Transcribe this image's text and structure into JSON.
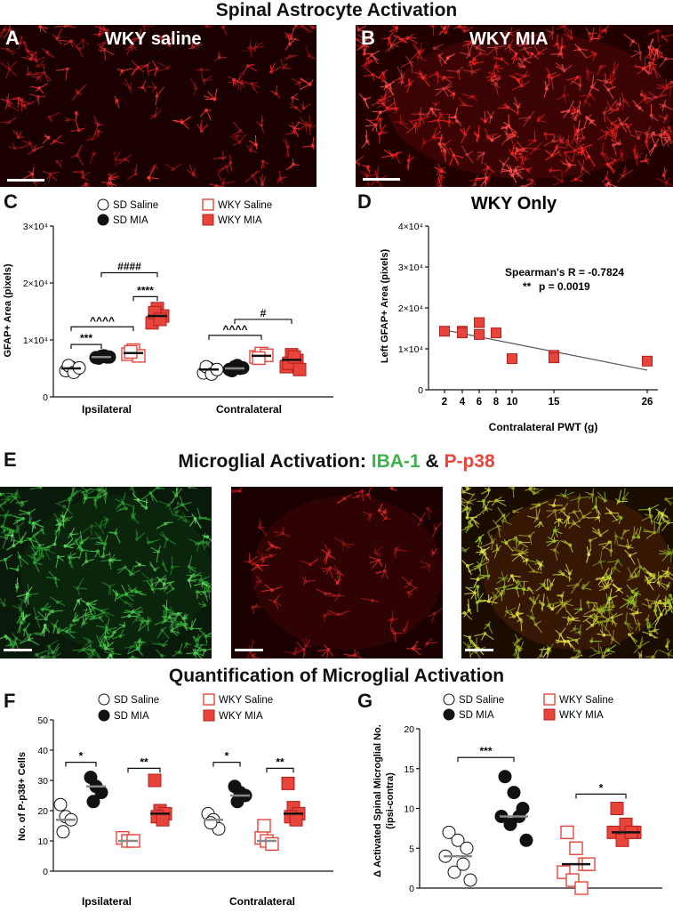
{
  "figure_title": "Spinal Astrocyte Activation",
  "panelA": {
    "letter": "A",
    "title": "WKY saline"
  },
  "panelB": {
    "letter": "B",
    "title": "WKY MIA"
  },
  "panelC_letter": "C",
  "panelD_letter": "D",
  "panelE_letter": "E",
  "panelF_letter": "F",
  "panelG_letter": "G",
  "microglia_title": {
    "prefix": "Microglial Activation: ",
    "iba": "IBA-1",
    "amp": " & ",
    "pp38": "P-p38"
  },
  "quant_title": "Quantification of Microglial Activation",
  "legend": {
    "sd_saline": "SD Saline",
    "sd_mia": "SD MIA",
    "wky_saline": "WKY Saline",
    "wky_mia": "WKY MIA"
  },
  "colors": {
    "red": "#e8443a",
    "green": "#3cb24a",
    "gray": "#888888",
    "black": "#111111"
  },
  "chart_data": [
    {
      "id": "C",
      "type": "scatter",
      "ylabel": "GFAP+ Area (pixels)",
      "yticks": [
        "0",
        "1×10⁴",
        "2×10⁴",
        "3×10⁴"
      ],
      "ylim": [
        0,
        30000
      ],
      "categories": [
        "Ipsilateral",
        "Contralateral"
      ],
      "series": [
        {
          "name": "SD Saline",
          "ipsi": [
            4600,
            5200,
            4800,
            5500,
            4300,
            5100
          ],
          "contra": [
            4200,
            5000,
            4600,
            5300,
            4000,
            4800
          ],
          "mean": [
            5000,
            4800
          ]
        },
        {
          "name": "SD MIA",
          "ipsi": [
            6900,
            7100,
            7000,
            6800,
            7200,
            7000
          ],
          "contra": [
            4800,
            5300,
            5000,
            4600,
            5500,
            5100
          ],
          "mean": [
            7000,
            5000
          ]
        },
        {
          "name": "WKY Saline",
          "ipsi": [
            7500,
            8200,
            7200,
            7900
          ],
          "contra": [
            7000,
            7600,
            7300,
            6800
          ],
          "mean": [
            7700,
            7200
          ]
        },
        {
          "name": "WKY MIA",
          "ipsi": [
            13000,
            15500,
            14200,
            14800,
            13600
          ],
          "contra": [
            5300,
            7400,
            6400,
            5900,
            7000,
            4800
          ],
          "mean": [
            14200,
            6500
          ]
        }
      ],
      "brackets": [
        {
          "label": "***"
        },
        {
          "label": "^^^^"
        },
        {
          "label": "####"
        },
        {
          "label": "****"
        },
        {
          "label": "^^^^"
        },
        {
          "label": "#"
        }
      ]
    },
    {
      "id": "D",
      "type": "scatter",
      "title": "WKY Only",
      "xlabel": "Contralateral PWT (g)",
      "ylabel": "Left GFAP+ Area (pixels)",
      "xticks": [
        "2",
        "4",
        "6",
        "8",
        "10",
        "15",
        "26"
      ],
      "yticks": [
        "0",
        "1×10⁴",
        "2×10⁴",
        "3×10⁴",
        "4×10⁴"
      ],
      "ylim": [
        0,
        40000
      ],
      "points": [
        {
          "x": "2",
          "y": 14300
        },
        {
          "x": "4",
          "y": 14300
        },
        {
          "x": "4",
          "y": 13900
        },
        {
          "x": "6",
          "y": 16400
        },
        {
          "x": "6",
          "y": 13500
        },
        {
          "x": "8",
          "y": 13900
        },
        {
          "x": "10",
          "y": 7600
        },
        {
          "x": "15",
          "y": 8400
        },
        {
          "x": "15",
          "y": 7800
        },
        {
          "x": "26",
          "y": 7000
        }
      ],
      "fit": {
        "x_start": "2",
        "x_end": "26",
        "y_start": 14600,
        "y_end": 4800
      },
      "stat1": "Spearman's R = -0.7824",
      "stat2_stars": "**",
      "stat2": "p = 0.0019"
    },
    {
      "id": "F",
      "type": "scatter",
      "ylabel": "No. of P-p38+ Cells",
      "yticks": [
        "0",
        "10",
        "20",
        "30",
        "40",
        "50"
      ],
      "ylim": [
        0,
        50
      ],
      "categories": [
        "Ipsilateral",
        "Contralateral"
      ],
      "series": [
        {
          "name": "SD Saline",
          "ipsi": [
            22,
            18,
            17,
            13
          ],
          "contra": [
            19,
            17,
            14,
            16
          ],
          "mean": [
            17,
            17
          ]
        },
        {
          "name": "SD MIA",
          "ipsi": [
            31,
            28,
            26,
            23
          ],
          "contra": [
            28,
            26,
            25,
            23
          ],
          "mean": [
            28,
            25
          ]
        },
        {
          "name": "WKY Saline",
          "ipsi": [
            11,
            10,
            10
          ],
          "contra": [
            11,
            10,
            9,
            15
          ],
          "mean": [
            10,
            10
          ]
        },
        {
          "name": "WKY MIA",
          "ipsi": [
            30,
            20,
            19,
            18,
            17
          ],
          "contra": [
            29,
            21,
            19,
            18,
            17
          ],
          "mean": [
            19,
            19
          ]
        }
      ],
      "brackets": [
        {
          "label": "*"
        },
        {
          "label": "**"
        },
        {
          "label": "*"
        },
        {
          "label": "**"
        }
      ]
    },
    {
      "id": "G",
      "type": "scatter",
      "ylabel": "Δ Activated Spinal Microglial No. (ipsi-contra)",
      "yticks": [
        "0",
        "5",
        "10",
        "15",
        "20"
      ],
      "ylim": [
        0,
        20
      ],
      "series": [
        {
          "name": "SD Saline",
          "values": [
            7,
            6,
            5,
            4,
            2,
            3,
            1
          ],
          "mean": 4
        },
        {
          "name": "SD MIA",
          "values": [
            14,
            12,
            10,
            9,
            8,
            9,
            6
          ],
          "mean": 9
        },
        {
          "name": "WKY Saline",
          "values": [
            7,
            5,
            3,
            2,
            1,
            0,
            3
          ],
          "mean": 3
        },
        {
          "name": "WKY MIA",
          "values": [
            10,
            8,
            7,
            7,
            6,
            7
          ],
          "mean": 7
        }
      ],
      "brackets": [
        {
          "label": "***"
        },
        {
          "label": "*"
        }
      ]
    }
  ]
}
